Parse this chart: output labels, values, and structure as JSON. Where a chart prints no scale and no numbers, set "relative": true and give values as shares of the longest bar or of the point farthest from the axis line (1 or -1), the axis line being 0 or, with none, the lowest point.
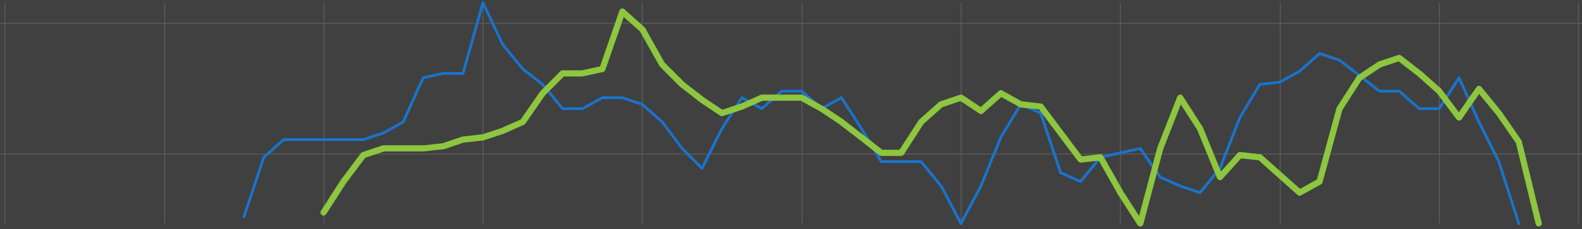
{
  "chart_data": {
    "type": "line",
    "relative": true,
    "grid": true,
    "marker": "none",
    "line_style": "solid",
    "categories": [
      null,
      null,
      null,
      null,
      null,
      null,
      null,
      null,
      null,
      null,
      null,
      null,
      null,
      null,
      null,
      null,
      null,
      null,
      null,
      null,
      null,
      null,
      null,
      null,
      null,
      null,
      null,
      null,
      null,
      null,
      null,
      null,
      null,
      null,
      null,
      null,
      null,
      null,
      null,
      null,
      null,
      null,
      null,
      null,
      null,
      null,
      null,
      null,
      null,
      null,
      null,
      null,
      null,
      null,
      null,
      null,
      null,
      null,
      null,
      null,
      null,
      null,
      null,
      null,
      null,
      null,
      null,
      null,
      null,
      null,
      null,
      null,
      null,
      null,
      null,
      null,
      null,
      null,
      null,
      null
    ],
    "series": [
      {
        "color": "#1874cd",
        "values": [
          null,
          null,
          null,
          null,
          null,
          null,
          null,
          null,
          null,
          null,
          null,
          null,
          0.03,
          0.3,
          0.38,
          0.38,
          0.38,
          0.38,
          0.38,
          0.41,
          0.46,
          0.66,
          0.68,
          0.68,
          1,
          0.81,
          0.7,
          0.63,
          0.52,
          0.52,
          0.57,
          0.57,
          0.54,
          0.46,
          0.34,
          0.25,
          0.43,
          0.57,
          0.52,
          0.6,
          0.6,
          0.52,
          0.57,
          0.43,
          0.28,
          0.28,
          0.28,
          0.17,
          0,
          0.17,
          0.39,
          0.54,
          0.5,
          0.23,
          0.19,
          0.3,
          0.32,
          0.34,
          0.21,
          0.17,
          0.14,
          0.25,
          0.48,
          0.63,
          0.64,
          0.69,
          0.77,
          0.74,
          0.67,
          0.6,
          0.6,
          0.52,
          0.52,
          0.66,
          0.46,
          0.28,
          0,
          null,
          null,
          null
        ]
      },
      {
        "color": "#8dc63f",
        "values": [
          null,
          null,
          null,
          null,
          null,
          null,
          null,
          null,
          null,
          null,
          null,
          null,
          null,
          null,
          null,
          null,
          0.05,
          0.19,
          0.31,
          0.34,
          0.34,
          0.34,
          0.35,
          0.38,
          0.39,
          0.42,
          0.46,
          0.59,
          0.68,
          0.68,
          0.7,
          0.96,
          0.88,
          0.72,
          0.63,
          0.56,
          0.5,
          0.53,
          0.57,
          0.57,
          0.57,
          0.52,
          0.46,
          0.39,
          0.32,
          0.32,
          0.46,
          0.54,
          0.57,
          0.51,
          0.59,
          0.54,
          0.53,
          0.41,
          0.29,
          0.3,
          0.14,
          0,
          0.34,
          0.57,
          0.43,
          0.21,
          0.31,
          0.3,
          0.22,
          0.14,
          0.19,
          0.52,
          0.66,
          0.72,
          0.75,
          0.68,
          0.6,
          0.48,
          0.61,
          0.5,
          0.37,
          0,
          null,
          null
        ]
      }
    ]
  }
}
